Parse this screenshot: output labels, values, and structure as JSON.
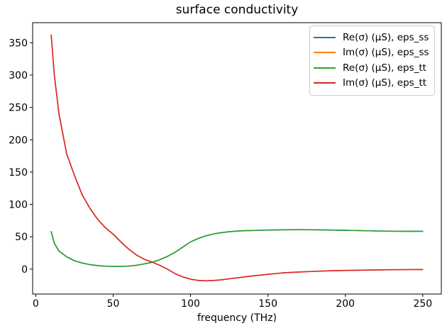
{
  "window": {
    "title": "surface conductivity"
  },
  "chart_data": {
    "type": "line",
    "title": "surface conductivity",
    "xlabel": "frequency (THz)",
    "ylabel": "",
    "xlim": [
      -2,
      262
    ],
    "ylim": [
      -38.5,
      381
    ],
    "xticks": [
      0,
      50,
      100,
      150,
      200,
      250
    ],
    "yticks": [
      0,
      50,
      100,
      150,
      200,
      250,
      300,
      350
    ],
    "grid": false,
    "legend_position": "upper right",
    "background": "#ffffff",
    "spine_color": "#000000",
    "x": [
      10,
      12,
      15,
      20,
      25,
      30,
      35,
      40,
      45,
      50,
      55,
      60,
      65,
      70,
      75,
      80,
      85,
      90,
      95,
      100,
      105,
      110,
      115,
      120,
      125,
      130,
      135,
      140,
      145,
      150,
      160,
      170,
      180,
      190,
      200,
      210,
      220,
      230,
      240,
      250
    ],
    "series": [
      {
        "name": "Re(σ) (μS), eps_ss",
        "color": "#1f77b4",
        "values": [
          58,
          40,
          28,
          19,
          13,
          9.5,
          7,
          5.5,
          4.6,
          4.2,
          4.2,
          4.8,
          6,
          8,
          10.5,
          14.5,
          19.5,
          26,
          34,
          42,
          47.5,
          51.5,
          54.5,
          56.5,
          57.8,
          58.8,
          59.4,
          59.8,
          60.1,
          60.4,
          60.8,
          61,
          60.8,
          60.4,
          60,
          59.5,
          59,
          58.7,
          58.5,
          58.5
        ]
      },
      {
        "name": "Im(σ) (μS), eps_ss",
        "color": "#ff7f0e",
        "values": [
          362,
          301,
          240,
          178,
          145,
          115,
          94,
          77,
          64,
          54,
          42,
          31,
          22,
          15.5,
          11,
          6,
          0,
          -7,
          -12,
          -15.5,
          -17.5,
          -18,
          -17.5,
          -16.5,
          -15,
          -13.5,
          -12,
          -10.5,
          -9.3,
          -8,
          -5.8,
          -4.4,
          -3.4,
          -2.6,
          -2,
          -1.6,
          -1.2,
          -0.9,
          -0.7,
          -0.6
        ]
      },
      {
        "name": "Re(σ) (μS), eps_tt",
        "color": "#2ca02c",
        "values": [
          58,
          40,
          28,
          19,
          13,
          9.5,
          7,
          5.5,
          4.6,
          4.2,
          4.2,
          4.8,
          6,
          8,
          10.5,
          14.5,
          19.5,
          26,
          34,
          42,
          47.5,
          51.5,
          54.5,
          56.5,
          57.8,
          58.8,
          59.4,
          59.8,
          60.1,
          60.4,
          60.8,
          61,
          60.8,
          60.4,
          60,
          59.5,
          59,
          58.7,
          58.5,
          58.5
        ]
      },
      {
        "name": "Im(σ) (μS), eps_tt",
        "color": "#d62728",
        "values": [
          362,
          301,
          240,
          178,
          145,
          115,
          94,
          77,
          64,
          54,
          42,
          31,
          22,
          15.5,
          11,
          6,
          0,
          -7,
          -12,
          -15.5,
          -17.5,
          -18,
          -17.5,
          -16.5,
          -15,
          -13.5,
          -12,
          -10.5,
          -9.3,
          -8,
          -5.8,
          -4.4,
          -3.4,
          -2.6,
          -2,
          -1.6,
          -1.2,
          -0.9,
          -0.7,
          -0.6
        ]
      }
    ]
  }
}
